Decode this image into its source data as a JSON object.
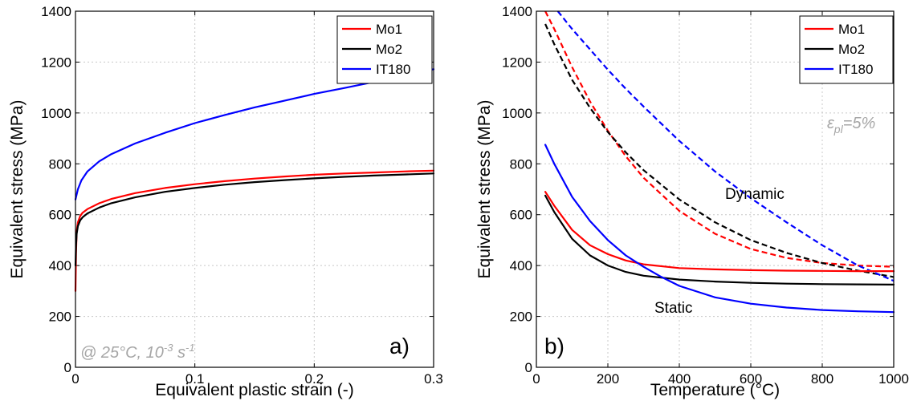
{
  "chart_data": [
    {
      "type": "line",
      "panel_label": "a)",
      "xlabel": "Equivalent plastic strain (-)",
      "ylabel": "Equivalent stress (MPa)",
      "xlim": [
        0,
        0.3
      ],
      "ylim": [
        0,
        1400
      ],
      "xticks": [
        "0",
        "0.1",
        "0.2",
        "0.3"
      ],
      "yticks": [
        "0",
        "200",
        "400",
        "600",
        "800",
        "1000",
        "1200",
        "1400"
      ],
      "grid": true,
      "legend_position": "top-right",
      "annotation": {
        "text": "@ 25°C, 10",
        "sup": "-3",
        "text2": " s",
        "sup2": "-1"
      },
      "series": [
        {
          "name": "Mo1",
          "color": "#ff0000",
          "dash": "solid",
          "x": [
            0,
            0.0005,
            0.001,
            0.002,
            0.004,
            0.006,
            0.01,
            0.02,
            0.03,
            0.05,
            0.075,
            0.1,
            0.125,
            0.15,
            0.175,
            0.2,
            0.225,
            0.25,
            0.275,
            0.3
          ],
          "y": [
            300,
            450,
            535,
            570,
            595,
            608,
            622,
            645,
            662,
            685,
            705,
            720,
            732,
            742,
            750,
            757,
            762,
            766,
            770,
            773
          ]
        },
        {
          "name": "Mo2",
          "color": "#000000",
          "dash": "solid",
          "x": [
            0,
            0.0005,
            0.001,
            0.002,
            0.004,
            0.006,
            0.01,
            0.02,
            0.03,
            0.05,
            0.075,
            0.1,
            0.125,
            0.15,
            0.175,
            0.2,
            0.225,
            0.25,
            0.275,
            0.3
          ],
          "y": [
            400,
            480,
            525,
            555,
            578,
            590,
            605,
            628,
            645,
            668,
            690,
            705,
            718,
            728,
            736,
            743,
            749,
            754,
            758,
            762
          ]
        },
        {
          "name": "IT180",
          "color": "#0000ff",
          "dash": "solid",
          "x": [
            0,
            0.002,
            0.005,
            0.01,
            0.02,
            0.03,
            0.05,
            0.075,
            0.1,
            0.125,
            0.15,
            0.175,
            0.2,
            0.225,
            0.25,
            0.275,
            0.3
          ],
          "y": [
            660,
            700,
            735,
            770,
            810,
            838,
            880,
            922,
            960,
            992,
            1022,
            1048,
            1075,
            1098,
            1122,
            1145,
            1172
          ]
        }
      ]
    },
    {
      "type": "line",
      "panel_label": "b)",
      "xlabel": "Temperature (°C)",
      "ylabel": "Equivalent stress (MPa)",
      "xlim": [
        0,
        1000
      ],
      "ylim": [
        0,
        1400
      ],
      "xticks": [
        "0",
        "200",
        "400",
        "600",
        "800",
        "1000"
      ],
      "yticks": [
        "0",
        "200",
        "400",
        "600",
        "800",
        "1000",
        "1200",
        "1400"
      ],
      "grid": true,
      "legend_position": "top-right",
      "annotation": {
        "symbol": "ε",
        "sub": "pl",
        "text": "=5%"
      },
      "curve_labels": [
        "Dynamic",
        "Static"
      ],
      "series": [
        {
          "name": "Mo1",
          "color": "#ff0000",
          "dash": "dashed",
          "x": [
            25,
            50,
            100,
            150,
            200,
            250,
            300,
            400,
            500,
            600,
            700,
            800,
            900,
            1000
          ],
          "y": [
            1400,
            1330,
            1180,
            1045,
            930,
            830,
            745,
            615,
            525,
            465,
            430,
            410,
            400,
            395
          ]
        },
        {
          "name": "Mo2",
          "color": "#000000",
          "dash": "dashed",
          "x": [
            25,
            50,
            100,
            150,
            200,
            250,
            300,
            400,
            500,
            600,
            700,
            800,
            900,
            1000
          ],
          "y": [
            1350,
            1270,
            1130,
            1020,
            925,
            845,
            775,
            660,
            570,
            500,
            450,
            410,
            380,
            355
          ]
        },
        {
          "name": "IT180",
          "color": "#0000ff",
          "dash": "dashed",
          "x": [
            60,
            100,
            150,
            200,
            250,
            300,
            400,
            500,
            600,
            700,
            800,
            900,
            1000
          ],
          "y": [
            1400,
            1330,
            1250,
            1170,
            1095,
            1025,
            890,
            770,
            665,
            570,
            480,
            400,
            340
          ]
        },
        {
          "name": "Mo1",
          "color": "#ff0000",
          "dash": "solid",
          "x": [
            25,
            50,
            100,
            150,
            200,
            250,
            300,
            400,
            500,
            600,
            700,
            800,
            900,
            1000
          ],
          "y": [
            690,
            635,
            540,
            480,
            445,
            420,
            405,
            390,
            385,
            382,
            380,
            379,
            378,
            378
          ]
        },
        {
          "name": "Mo2",
          "color": "#000000",
          "dash": "solid",
          "x": [
            25,
            50,
            100,
            150,
            200,
            250,
            300,
            400,
            500,
            600,
            700,
            800,
            900,
            1000
          ],
          "y": [
            675,
            610,
            505,
            440,
            400,
            375,
            360,
            345,
            337,
            332,
            329,
            327,
            326,
            325
          ]
        },
        {
          "name": "IT180",
          "color": "#0000ff",
          "dash": "solid",
          "x": [
            25,
            50,
            100,
            150,
            200,
            250,
            300,
            350,
            400,
            500,
            600,
            700,
            800,
            900,
            1000
          ],
          "y": [
            875,
            800,
            670,
            575,
            500,
            440,
            395,
            355,
            320,
            275,
            250,
            235,
            225,
            220,
            217
          ]
        }
      ]
    }
  ]
}
